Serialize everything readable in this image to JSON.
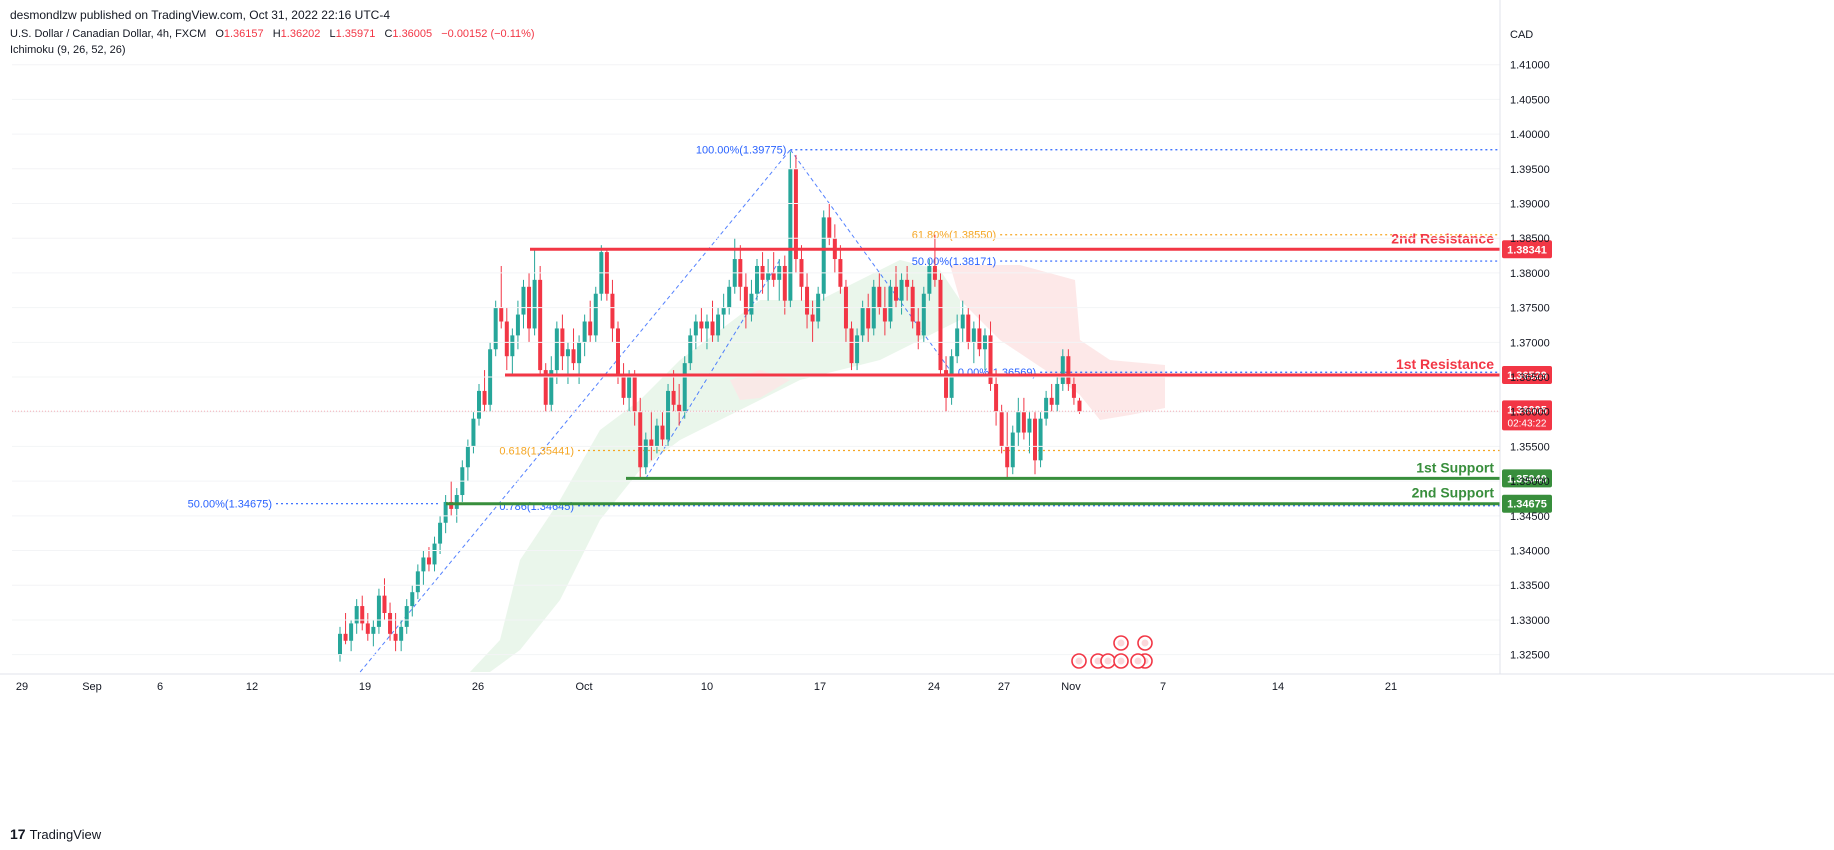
{
  "header": {
    "published": "desmondlzw published on TradingView.com, Oct 31, 2022 22:16 UTC-4"
  },
  "legend": {
    "symbol": "U.S. Dollar / Canadian Dollar, 4h, FXCM",
    "o_label": "O",
    "o_value": "1.36157",
    "h_label": "H",
    "h_value": "1.36202",
    "l_label": "L",
    "l_value": "1.35971",
    "c_label": "C",
    "c_value": "1.36005",
    "change": "−0.00152 (−0.11%)",
    "indicator": "Ichimoku (9, 26, 52, 26)"
  },
  "footer": {
    "brand": "TradingView",
    "logo_text": "17"
  },
  "colors": {
    "up": "#26a69a",
    "down": "#f23645",
    "resistance": "#f23645",
    "support": "#388e3c",
    "fib_blue": "#2962ff",
    "fib_orange": "#f5a623",
    "cloud_green": "#e8f5e9",
    "cloud_red": "#fde6e6"
  },
  "chart_data": {
    "type": "candlestick",
    "currency": "CAD",
    "ylim": [
      1.3225,
      1.415
    ],
    "x_tick_labels": [
      "29",
      "Sep",
      "6",
      "12",
      "19",
      "26",
      "Oct",
      "10",
      "17",
      "24",
      "27",
      "Nov",
      "7",
      "14",
      "21"
    ],
    "y_tick_labels": [
      "1.41000",
      "1.40500",
      "1.40000",
      "1.39500",
      "1.39000",
      "1.38500",
      "1.38000",
      "1.37500",
      "1.37000",
      "1.36500",
      "1.36000",
      "1.35500",
      "1.35000",
      "1.34500",
      "1.34000",
      "1.33500",
      "1.33000",
      "1.32500"
    ],
    "last_price": "1.36005",
    "countdown": "02:43:22",
    "levels": [
      {
        "name": "2nd Resistance",
        "price": "1.38341",
        "kind": "resistance"
      },
      {
        "name": "1st Resistance",
        "price": "1.36529",
        "kind": "resistance"
      },
      {
        "name": "1st Support",
        "price": "1.35040",
        "kind": "support"
      },
      {
        "name": "2nd Support",
        "price": "1.34675",
        "kind": "support"
      }
    ],
    "fib_labels": [
      {
        "text": "100.00%(1.39775)",
        "color": "blue"
      },
      {
        "text": "61.80%(1.38550)",
        "color": "orange"
      },
      {
        "text": "50.00%(1.38171)",
        "color": "blue"
      },
      {
        "text": "0.00%(1.36569)",
        "color": "blue"
      },
      {
        "text": "0.618(1.35441)",
        "color": "orange"
      },
      {
        "text": "0.786(1.34645)",
        "color": "blue"
      },
      {
        "text": "50.00%(1.34675)",
        "color": "blue"
      }
    ],
    "ohlc": [
      [
        1.325,
        1.329,
        1.324,
        1.328
      ],
      [
        1.328,
        1.331,
        1.3265,
        1.327
      ],
      [
        1.327,
        1.33,
        1.3255,
        1.3295
      ],
      [
        1.3295,
        1.333,
        1.328,
        1.332
      ],
      [
        1.332,
        1.3335,
        1.3285,
        1.3295
      ],
      [
        1.3295,
        1.331,
        1.327,
        1.328
      ],
      [
        1.328,
        1.33,
        1.3262,
        1.329
      ],
      [
        1.329,
        1.3345,
        1.328,
        1.3335
      ],
      [
        1.3335,
        1.336,
        1.33,
        1.331
      ],
      [
        1.331,
        1.3325,
        1.327,
        1.328
      ],
      [
        1.328,
        1.331,
        1.3255,
        1.327
      ],
      [
        1.327,
        1.33,
        1.3255,
        1.329
      ],
      [
        1.329,
        1.333,
        1.328,
        1.332
      ],
      [
        1.332,
        1.335,
        1.3305,
        1.334
      ],
      [
        1.334,
        1.338,
        1.333,
        1.337
      ],
      [
        1.337,
        1.34,
        1.335,
        1.339
      ],
      [
        1.339,
        1.3405,
        1.337,
        1.338
      ],
      [
        1.338,
        1.342,
        1.337,
        1.341
      ],
      [
        1.341,
        1.345,
        1.3395,
        1.344
      ],
      [
        1.344,
        1.348,
        1.3425,
        1.347
      ],
      [
        1.347,
        1.35,
        1.345,
        1.346
      ],
      [
        1.346,
        1.349,
        1.344,
        1.348
      ],
      [
        1.348,
        1.353,
        1.347,
        1.352
      ],
      [
        1.352,
        1.356,
        1.35,
        1.355
      ],
      [
        1.355,
        1.36,
        1.354,
        1.359
      ],
      [
        1.359,
        1.364,
        1.358,
        1.363
      ],
      [
        1.363,
        1.366,
        1.36,
        1.361
      ],
      [
        1.361,
        1.37,
        1.36,
        1.369
      ],
      [
        1.369,
        1.376,
        1.368,
        1.375
      ],
      [
        1.375,
        1.381,
        1.372,
        1.373
      ],
      [
        1.373,
        1.375,
        1.366,
        1.368
      ],
      [
        1.368,
        1.372,
        1.365,
        1.371
      ],
      [
        1.371,
        1.376,
        1.369,
        1.374
      ],
      [
        1.374,
        1.379,
        1.372,
        1.378
      ],
      [
        1.378,
        1.38,
        1.37,
        1.372
      ],
      [
        1.372,
        1.3835,
        1.371,
        1.379
      ],
      [
        1.379,
        1.381,
        1.365,
        1.366
      ],
      [
        1.366,
        1.367,
        1.36,
        1.361
      ],
      [
        1.361,
        1.368,
        1.36,
        1.366
      ],
      [
        1.366,
        1.373,
        1.364,
        1.372
      ],
      [
        1.372,
        1.374,
        1.366,
        1.368
      ],
      [
        1.368,
        1.37,
        1.364,
        1.369
      ],
      [
        1.369,
        1.372,
        1.366,
        1.367
      ],
      [
        1.367,
        1.371,
        1.364,
        1.37
      ],
      [
        1.37,
        1.374,
        1.368,
        1.373
      ],
      [
        1.373,
        1.376,
        1.37,
        1.371
      ],
      [
        1.371,
        1.378,
        1.37,
        1.377
      ],
      [
        1.377,
        1.384,
        1.376,
        1.383
      ],
      [
        1.383,
        1.3835,
        1.376,
        1.377
      ],
      [
        1.377,
        1.379,
        1.37,
        1.372
      ],
      [
        1.372,
        1.373,
        1.364,
        1.365
      ],
      [
        1.365,
        1.367,
        1.361,
        1.362
      ],
      [
        1.362,
        1.366,
        1.36,
        1.365
      ],
      [
        1.365,
        1.366,
        1.358,
        1.36
      ],
      [
        1.36,
        1.362,
        1.3505,
        1.352
      ],
      [
        1.352,
        1.357,
        1.351,
        1.356
      ],
      [
        1.356,
        1.36,
        1.353,
        1.355
      ],
      [
        1.355,
        1.359,
        1.354,
        1.358
      ],
      [
        1.358,
        1.36,
        1.355,
        1.356
      ],
      [
        1.356,
        1.364,
        1.355,
        1.363
      ],
      [
        1.363,
        1.366,
        1.36,
        1.361
      ],
      [
        1.361,
        1.364,
        1.358,
        1.36
      ],
      [
        1.36,
        1.368,
        1.359,
        1.367
      ],
      [
        1.367,
        1.372,
        1.366,
        1.371
      ],
      [
        1.371,
        1.374,
        1.369,
        1.373
      ],
      [
        1.373,
        1.375,
        1.37,
        1.372
      ],
      [
        1.372,
        1.374,
        1.369,
        1.373
      ],
      [
        1.373,
        1.376,
        1.37,
        1.371
      ],
      [
        1.371,
        1.375,
        1.37,
        1.374
      ],
      [
        1.374,
        1.377,
        1.372,
        1.375
      ],
      [
        1.375,
        1.379,
        1.374,
        1.378
      ],
      [
        1.378,
        1.385,
        1.377,
        1.382
      ],
      [
        1.382,
        1.384,
        1.376,
        1.378
      ],
      [
        1.378,
        1.38,
        1.372,
        1.374
      ],
      [
        1.374,
        1.379,
        1.373,
        1.377
      ],
      [
        1.377,
        1.382,
        1.376,
        1.381
      ],
      [
        1.381,
        1.383,
        1.377,
        1.379
      ],
      [
        1.379,
        1.382,
        1.376,
        1.38
      ],
      [
        1.38,
        1.383,
        1.378,
        1.379
      ],
      [
        1.379,
        1.382,
        1.376,
        1.381
      ],
      [
        1.381,
        1.3825,
        1.374,
        1.376
      ],
      [
        1.376,
        1.3975,
        1.375,
        1.395
      ],
      [
        1.395,
        1.397,
        1.38,
        1.382
      ],
      [
        1.382,
        1.384,
        1.376,
        1.378
      ],
      [
        1.378,
        1.38,
        1.372,
        1.374
      ],
      [
        1.374,
        1.376,
        1.37,
        1.373
      ],
      [
        1.373,
        1.378,
        1.372,
        1.377
      ],
      [
        1.377,
        1.389,
        1.376,
        1.388
      ],
      [
        1.388,
        1.39,
        1.384,
        1.385
      ],
      [
        1.385,
        1.387,
        1.38,
        1.382
      ],
      [
        1.382,
        1.384,
        1.377,
        1.378
      ],
      [
        1.378,
        1.379,
        1.37,
        1.372
      ],
      [
        1.372,
        1.373,
        1.366,
        1.367
      ],
      [
        1.367,
        1.372,
        1.366,
        1.371
      ],
      [
        1.371,
        1.376,
        1.37,
        1.375
      ],
      [
        1.375,
        1.377,
        1.37,
        1.372
      ],
      [
        1.372,
        1.379,
        1.371,
        1.378
      ],
      [
        1.378,
        1.38,
        1.374,
        1.375
      ],
      [
        1.375,
        1.378,
        1.371,
        1.373
      ],
      [
        1.373,
        1.379,
        1.372,
        1.378
      ],
      [
        1.378,
        1.381,
        1.375,
        1.376
      ],
      [
        1.376,
        1.38,
        1.374,
        1.379
      ],
      [
        1.379,
        1.381,
        1.376,
        1.378
      ],
      [
        1.378,
        1.379,
        1.372,
        1.373
      ],
      [
        1.373,
        1.375,
        1.369,
        1.371
      ],
      [
        1.371,
        1.378,
        1.37,
        1.377
      ],
      [
        1.377,
        1.382,
        1.376,
        1.381
      ],
      [
        1.381,
        1.3855,
        1.378,
        1.379
      ],
      [
        1.379,
        1.38,
        1.365,
        1.366
      ],
      [
        1.366,
        1.368,
        1.36,
        1.362
      ],
      [
        1.362,
        1.369,
        1.361,
        1.368
      ],
      [
        1.368,
        1.374,
        1.367,
        1.372
      ],
      [
        1.372,
        1.376,
        1.37,
        1.374
      ],
      [
        1.374,
        1.375,
        1.369,
        1.37
      ],
      [
        1.37,
        1.373,
        1.367,
        1.372
      ],
      [
        1.372,
        1.374,
        1.368,
        1.369
      ],
      [
        1.369,
        1.372,
        1.366,
        1.371
      ],
      [
        1.371,
        1.373,
        1.363,
        1.364
      ],
      [
        1.364,
        1.366,
        1.358,
        1.36
      ],
      [
        1.36,
        1.361,
        1.354,
        1.355
      ],
      [
        1.355,
        1.36,
        1.3505,
        1.352
      ],
      [
        1.352,
        1.358,
        1.351,
        1.357
      ],
      [
        1.357,
        1.362,
        1.355,
        1.36
      ],
      [
        1.36,
        1.362,
        1.356,
        1.357
      ],
      [
        1.357,
        1.36,
        1.354,
        1.359
      ],
      [
        1.359,
        1.36,
        1.351,
        1.353
      ],
      [
        1.353,
        1.36,
        1.352,
        1.359
      ],
      [
        1.359,
        1.363,
        1.358,
        1.362
      ],
      [
        1.362,
        1.364,
        1.36,
        1.361
      ],
      [
        1.361,
        1.365,
        1.36,
        1.364
      ],
      [
        1.364,
        1.369,
        1.363,
        1.368
      ],
      [
        1.368,
        1.369,
        1.363,
        1.364
      ],
      [
        1.364,
        1.365,
        1.361,
        1.362
      ],
      [
        1.3616,
        1.362,
        1.3597,
        1.36
      ]
    ],
    "fib_retracement": {
      "from_index": 36,
      "to_index": 81,
      "low": 1.36569,
      "high": 1.39775,
      "levels": [
        {
          "pct": "100.00%",
          "price": 1.39775
        },
        {
          "pct": "61.80%",
          "price": 1.3855
        },
        {
          "pct": "50.00%",
          "price": 1.38171
        },
        {
          "pct": "0.00%",
          "price": 1.36569
        }
      ]
    },
    "fib_extension": {
      "levels": [
        {
          "ratio": "0.618",
          "price": 1.35441
        },
        {
          "ratio": "0.786",
          "price": 1.34645
        }
      ]
    },
    "fib_secondary": {
      "level": "50.00%",
      "price": 1.34675
    },
    "events_count": 8
  }
}
